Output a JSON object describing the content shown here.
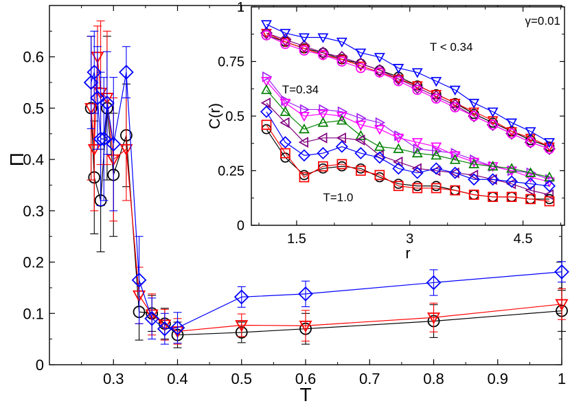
{
  "chart_data": [
    {
      "type": "scatter",
      "xlabel": "T",
      "ylabel": "Π",
      "xlim": [
        0.2,
        1.0
      ],
      "ylim": [
        0,
        0.7
      ],
      "xticks": [
        0.3,
        0.4,
        0.5,
        0.6,
        0.7,
        0.8,
        0.9,
        1
      ],
      "xtick_labels": [
        "0.3",
        "0.4",
        "0.5",
        "0.6",
        "0.7",
        "0.8",
        "0.9",
        "1"
      ],
      "yticks": [
        0,
        0.1,
        0.2,
        0.3,
        0.4,
        0.5,
        0.6
      ],
      "ytick_labels": [
        "0",
        "0.1",
        "0.2",
        "0.3",
        "0.4",
        "0.5",
        "0.6"
      ],
      "grid": false,
      "series": [
        {
          "marker": "circle",
          "color": "#000000",
          "x": [
            0.265,
            0.27,
            0.28,
            0.29,
            0.3,
            0.32,
            0.34,
            0.36,
            0.38,
            0.4,
            0.5,
            0.6,
            0.8,
            1.0
          ],
          "y": [
            0.5,
            0.365,
            0.32,
            0.5,
            0.37,
            0.447,
            0.103,
            0.1,
            0.08,
            0.058,
            0.063,
            0.07,
            0.085,
            0.105
          ],
          "err": [
            0.14,
            0.11,
            0.1,
            0.14,
            0.12,
            0.1,
            0.055,
            0.035,
            0.03,
            0.025,
            0.02,
            0.03,
            0.032,
            0.04
          ]
        },
        {
          "marker": "triangle-down",
          "color": "#ff0000",
          "x": [
            0.265,
            0.27,
            0.275,
            0.28,
            0.29,
            0.3,
            0.32,
            0.34,
            0.36,
            0.38,
            0.4,
            0.5,
            0.6,
            0.8,
            1.0
          ],
          "y": [
            0.5,
            0.42,
            0.6,
            0.53,
            0.52,
            0.4,
            0.42,
            0.135,
            0.098,
            0.078,
            0.065,
            0.077,
            0.076,
            0.092,
            0.118
          ],
          "err": [
            0.14,
            0.12,
            0.06,
            0.14,
            0.13,
            0.12,
            0.1,
            0.055,
            0.04,
            0.03,
            0.025,
            0.022,
            0.03,
            0.028,
            0.03
          ]
        },
        {
          "marker": "diamond",
          "color": "#0000ff",
          "x": [
            0.265,
            0.27,
            0.275,
            0.28,
            0.285,
            0.29,
            0.3,
            0.32,
            0.34,
            0.36,
            0.38,
            0.4,
            0.5,
            0.6,
            0.8,
            1.0
          ],
          "y": [
            0.55,
            0.57,
            0.52,
            0.44,
            0.44,
            0.51,
            0.43,
            0.57,
            0.165,
            0.09,
            0.07,
            0.072,
            0.132,
            0.138,
            0.16,
            0.181
          ],
          "err": [
            0.09,
            0.08,
            0.1,
            0.13,
            0.12,
            0.1,
            0.13,
            0.05,
            0.085,
            0.04,
            0.03,
            0.03,
            0.02,
            0.025,
            0.025,
            0.02
          ]
        }
      ]
    },
    {
      "type": "line",
      "xlabel": "r",
      "ylabel": "C(r)",
      "xlim": [
        0.9,
        5.05
      ],
      "ylim": [
        0,
        1
      ],
      "xticks": [
        1.5,
        3,
        4.5
      ],
      "xtick_labels": [
        "1.5",
        "3",
        "4.5"
      ],
      "yticks": [
        0,
        0.25,
        0.5,
        0.75,
        1
      ],
      "ytick_labels": [
        "0",
        "0.25",
        "0.5",
        "0.75",
        "1"
      ],
      "grid": false,
      "annotations": [
        "γ=0.01",
        "T < 0.34",
        "T=0.34",
        "T=1.0"
      ],
      "x": [
        1.1,
        1.35,
        1.6,
        1.85,
        2.1,
        2.35,
        2.6,
        2.85,
        3.1,
        3.35,
        3.6,
        3.85,
        4.1,
        4.35,
        4.6,
        4.85
      ],
      "series": [
        {
          "marker": "circle",
          "color": "#000000",
          "y": [
            0.87,
            0.84,
            0.81,
            0.79,
            0.76,
            0.74,
            0.71,
            0.68,
            0.64,
            0.6,
            0.56,
            0.51,
            0.47,
            0.43,
            0.39,
            0.36
          ]
        },
        {
          "marker": "triangle-down",
          "color": "#ff0000",
          "y": [
            0.88,
            0.84,
            0.81,
            0.78,
            0.76,
            0.73,
            0.7,
            0.67,
            0.64,
            0.6,
            0.56,
            0.52,
            0.48,
            0.43,
            0.4,
            0.36
          ]
        },
        {
          "marker": "diamond",
          "color": "#7f007f",
          "y": [
            0.88,
            0.85,
            0.82,
            0.79,
            0.77,
            0.74,
            0.71,
            0.67,
            0.63,
            0.59,
            0.55,
            0.5,
            0.46,
            0.42,
            0.38,
            0.35
          ]
        },
        {
          "marker": "circle",
          "color": "#ff00ff",
          "y": [
            0.87,
            0.83,
            0.8,
            0.78,
            0.75,
            0.72,
            0.7,
            0.66,
            0.62,
            0.58,
            0.54,
            0.5,
            0.46,
            0.42,
            0.38,
            0.35
          ]
        },
        {
          "marker": "triangle-down",
          "color": "#0000ff",
          "y": [
            0.92,
            0.88,
            0.86,
            0.86,
            0.84,
            0.79,
            0.77,
            0.72,
            0.7,
            0.66,
            0.62,
            0.56,
            0.52,
            0.47,
            0.43,
            0.38
          ]
        },
        {
          "marker": "triangle-right",
          "color": "#a020f0",
          "y": [
            0.68,
            0.57,
            0.53,
            0.53,
            0.52,
            0.49,
            0.47,
            0.41,
            0.35,
            0.34,
            0.33,
            0.3,
            0.27,
            0.25,
            0.24,
            0.21
          ]
        },
        {
          "marker": "triangle-down",
          "color": "#ff00ff",
          "y": [
            0.66,
            0.56,
            0.5,
            0.51,
            0.5,
            0.46,
            0.44,
            0.4,
            0.38,
            0.36,
            0.32,
            0.29,
            0.27,
            0.25,
            0.22,
            0.2
          ]
        },
        {
          "marker": "triangle-up",
          "color": "#008000",
          "y": [
            0.62,
            0.52,
            0.44,
            0.47,
            0.48,
            0.41,
            0.36,
            0.35,
            0.33,
            0.32,
            0.3,
            0.28,
            0.27,
            0.26,
            0.24,
            0.22
          ]
        },
        {
          "marker": "triangle-left",
          "color": "#7f007f",
          "y": [
            0.56,
            0.47,
            0.38,
            0.4,
            0.4,
            0.39,
            0.32,
            0.29,
            0.26,
            0.25,
            0.24,
            0.23,
            0.21,
            0.19,
            0.16,
            0.14
          ]
        },
        {
          "marker": "diamond",
          "color": "#0000ff",
          "y": [
            0.52,
            0.38,
            0.32,
            0.33,
            0.36,
            0.33,
            0.31,
            0.26,
            0.24,
            0.26,
            0.24,
            0.21,
            0.21,
            0.2,
            0.19,
            0.18
          ]
        },
        {
          "marker": "circle",
          "color": "#000000",
          "y": [
            0.44,
            0.31,
            0.23,
            0.26,
            0.27,
            0.26,
            0.22,
            0.19,
            0.18,
            0.18,
            0.16,
            0.14,
            0.13,
            0.13,
            0.12,
            0.12
          ]
        },
        {
          "marker": "square",
          "color": "#ff0000",
          "y": [
            0.46,
            0.33,
            0.22,
            0.27,
            0.28,
            0.25,
            0.23,
            0.18,
            0.17,
            0.17,
            0.16,
            0.14,
            0.13,
            0.13,
            0.12,
            0.11
          ]
        }
      ]
    }
  ]
}
